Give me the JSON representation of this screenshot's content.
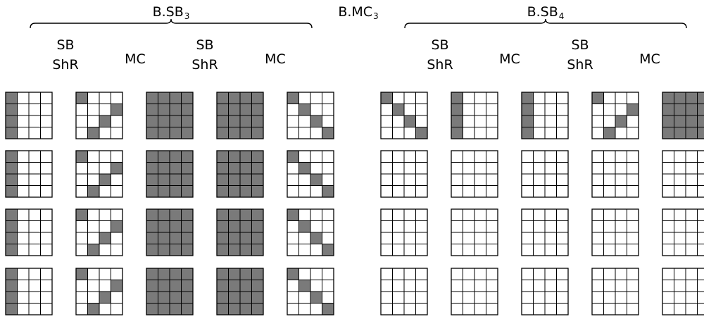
{
  "title_labels": {
    "sb3": {
      "base": "B.SB",
      "sub": "3"
    },
    "mc3": {
      "base": "B.MC",
      "sub": "3"
    },
    "sb4": {
      "base": "B.SB",
      "sub": "4"
    }
  },
  "column_labels": {
    "sb_shr": [
      "SB",
      "ShR"
    ],
    "mc": "MC"
  },
  "colors": {
    "filled": "#7a7a7a",
    "empty": "#ffffff",
    "line": "#000000"
  },
  "matrix_patterns": {
    "col0": [
      [
        1,
        0,
        0,
        0
      ],
      [
        1,
        0,
        0,
        0
      ],
      [
        1,
        0,
        0,
        0
      ],
      [
        1,
        0,
        0,
        0
      ]
    ],
    "antidiag_shift": [
      [
        1,
        0,
        0,
        0
      ],
      [
        0,
        0,
        0,
        1
      ],
      [
        0,
        0,
        1,
        0
      ],
      [
        0,
        1,
        0,
        0
      ]
    ],
    "full": [
      [
        1,
        1,
        1,
        1
      ],
      [
        1,
        1,
        1,
        1
      ],
      [
        1,
        1,
        1,
        1
      ],
      [
        1,
        1,
        1,
        1
      ]
    ],
    "diag": [
      [
        1,
        0,
        0,
        0
      ],
      [
        0,
        1,
        0,
        0
      ],
      [
        0,
        0,
        1,
        0
      ],
      [
        0,
        0,
        0,
        1
      ]
    ],
    "empty": [
      [
        0,
        0,
        0,
        0
      ],
      [
        0,
        0,
        0,
        0
      ],
      [
        0,
        0,
        0,
        0
      ],
      [
        0,
        0,
        0,
        0
      ]
    ]
  },
  "grid_rows": [
    [
      "col0",
      "antidiag_shift",
      "full",
      "full",
      "diag",
      "diag",
      "col0",
      "col0",
      "antidiag_shift",
      "full"
    ],
    [
      "col0",
      "antidiag_shift",
      "full",
      "full",
      "diag",
      "empty",
      "empty",
      "empty",
      "empty",
      "empty"
    ],
    [
      "col0",
      "antidiag_shift",
      "full",
      "full",
      "diag",
      "empty",
      "empty",
      "empty",
      "empty",
      "empty"
    ],
    [
      "col0",
      "antidiag_shift",
      "full",
      "full",
      "diag",
      "empty",
      "empty",
      "empty",
      "empty",
      "empty"
    ]
  ]
}
